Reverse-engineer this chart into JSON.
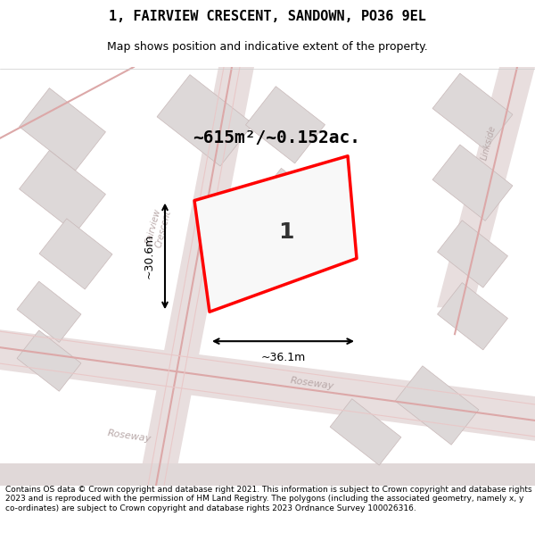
{
  "title": "1, FAIRVIEW CRESCENT, SANDOWN, PO36 9EL",
  "subtitle": "Map shows position and indicative extent of the property.",
  "footer": "Contains OS data © Crown copyright and database right 2021. This information is subject to Crown copyright and database rights 2023 and is reproduced with the permission of HM Land Registry. The polygons (including the associated geometry, namely x, y co-ordinates) are subject to Crown copyright and database rights 2023 Ordnance Survey 100026316.",
  "area_label": "~615m²/~0.152ac.",
  "width_label": "~36.1m",
  "height_label": "~30.6m",
  "plot_number": "1",
  "bg_color": "#f5f0f0",
  "map_bg": "#f0eeee",
  "road_color": "#e8e0e0",
  "building_color": "#d8d0d0",
  "building_fill": "#e8e4e4",
  "plot_outline_color": "#ff0000",
  "plot_fill_color": "#ffffff",
  "dim_line_color": "#000000",
  "street_label_color": "#b0a0a0",
  "title_color": "#000000",
  "footer_color": "#000000",
  "figsize": [
    6.0,
    6.25
  ],
  "dpi": 100
}
